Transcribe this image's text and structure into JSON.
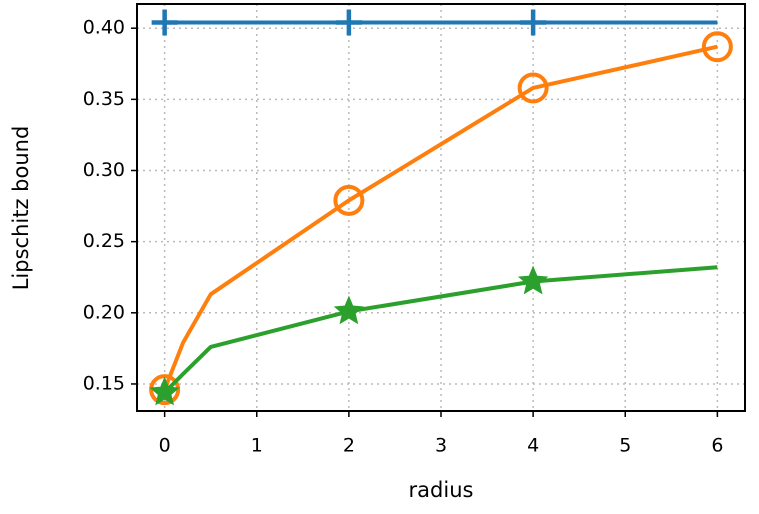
{
  "chart_data": {
    "type": "line",
    "x_label": "radius",
    "y_label": "Lipschitz bound",
    "x": [
      0,
      0.2,
      0.5,
      2,
      4,
      6
    ],
    "series": [
      {
        "color": "#1f77b4",
        "marker": "plus",
        "markevery": [
          0,
          3,
          4
        ],
        "values": [
          0.404,
          0.404,
          0.404,
          0.404,
          0.404,
          0.404
        ]
      },
      {
        "color": "#ff7f0e",
        "marker": "circle",
        "markevery": [
          0,
          3,
          4,
          5
        ],
        "values": [
          0.146,
          0.179,
          0.213,
          0.279,
          0.358,
          0.387
        ]
      },
      {
        "color": "#2ca02c",
        "marker": "star",
        "markevery": [
          0,
          3,
          4
        ],
        "values": [
          0.144,
          0.157,
          0.176,
          0.201,
          0.222,
          0.232
        ]
      }
    ],
    "xlim": [
      -0.3,
      6.3
    ],
    "ylim": [
      0.131,
      0.417
    ],
    "xticks": [
      0,
      1,
      2,
      3,
      4,
      5,
      6
    ],
    "yticks": [
      0.15,
      {
        "value": 0.2,
        "label": "0.20"
      },
      0.25,
      {
        "value": 0.3,
        "label": "0.30"
      },
      0.35,
      {
        "value": 0.4,
        "label": "0.40"
      }
    ],
    "grid": true
  }
}
